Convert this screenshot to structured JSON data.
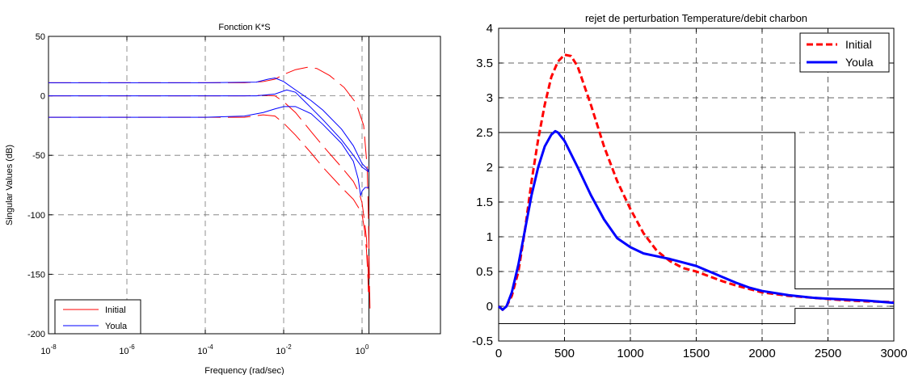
{
  "chart_data": [
    {
      "type": "line",
      "title": "Fonction K*S",
      "xlabel": "Frequency (rad/sec)",
      "ylabel": "Singular Values (dB)",
      "xscale": "log",
      "xlim": [
        1e-08,
        100
      ],
      "ylim": [
        -200,
        50
      ],
      "grid": true,
      "legend_position": "bottom-left",
      "xticks": [
        1e-08,
        1e-06,
        0.0001,
        0.01,
        1
      ],
      "xtick_labels": [
        {
          "base": "10",
          "exp": "-8"
        },
        {
          "base": "10",
          "exp": "-6"
        },
        {
          "base": "10",
          "exp": "-4"
        },
        {
          "base": "10",
          "exp": "-2"
        },
        {
          "base": "10",
          "exp": "0"
        }
      ],
      "yticks": [
        -200,
        -150,
        -100,
        -50,
        0,
        50
      ],
      "ytick_labels": [
        "-200",
        "-150",
        "-100",
        "-50",
        "0",
        "50"
      ],
      "series": [
        {
          "name": "Initial",
          "color": "#ff0000",
          "dash": "long",
          "values": [
            [
              [
                1e-08,
                11
              ],
              [
                0.0001,
                11
              ],
              [
                0.001,
                11
              ],
              [
                0.003,
                12
              ],
              [
                0.006,
                14
              ],
              [
                0.01,
                18
              ],
              [
                0.02,
                22
              ],
              [
                0.04,
                24
              ],
              [
                0.07,
                23
              ],
              [
                0.15,
                17
              ],
              [
                0.35,
                7
              ],
              [
                0.7,
                -6
              ],
              [
                1.1,
                -25
              ],
              [
                1.35,
                -60
              ],
              [
                1.45,
                -100
              ],
              [
                1.5,
                -130
              ],
              [
                1.55,
                -160
              ],
              [
                1.6,
                -180
              ]
            ],
            [
              [
                1e-08,
                0
              ],
              [
                0.0001,
                0
              ],
              [
                0.001,
                0
              ],
              [
                0.003,
                0.5
              ],
              [
                0.006,
                0
              ],
              [
                0.01,
                -5
              ],
              [
                0.02,
                -14
              ],
              [
                0.05,
                -30
              ],
              [
                0.1,
                -42
              ],
              [
                0.3,
                -60
              ],
              [
                0.6,
                -72
              ],
              [
                0.85,
                -82
              ],
              [
                1.0,
                -90
              ],
              [
                1.15,
                -105
              ],
              [
                1.3,
                -120
              ],
              [
                1.42,
                -145
              ],
              [
                1.5,
                -165
              ]
            ],
            [
              [
                1e-08,
                -18
              ],
              [
                0.0001,
                -18
              ],
              [
                0.001,
                -18
              ],
              [
                0.003,
                -16
              ],
              [
                0.006,
                -17
              ],
              [
                0.01,
                -23
              ],
              [
                0.02,
                -33
              ],
              [
                0.05,
                -48
              ],
              [
                0.1,
                -60
              ],
              [
                0.3,
                -77
              ],
              [
                0.6,
                -87
              ],
              [
                0.85,
                -95
              ],
              [
                1.0,
                -100
              ],
              [
                1.15,
                -112
              ],
              [
                1.3,
                -130
              ],
              [
                1.4,
                -150
              ],
              [
                1.45,
                -165
              ]
            ]
          ]
        },
        {
          "name": "Youla",
          "color": "#0000ff",
          "dash": "solid",
          "values": [
            [
              [
                1e-08,
                11
              ],
              [
                0.0001,
                11
              ],
              [
                0.002,
                11.5
              ],
              [
                0.004,
                14
              ],
              [
                0.006,
                15
              ],
              [
                0.01,
                12
              ],
              [
                0.02,
                5
              ],
              [
                0.05,
                -4
              ],
              [
                0.1,
                -12
              ],
              [
                0.3,
                -28
              ],
              [
                0.6,
                -42
              ],
              [
                1.0,
                -57
              ],
              [
                1.5,
                -63
              ]
            ],
            [
              [
                1e-08,
                0
              ],
              [
                0.0001,
                0
              ],
              [
                0.002,
                0
              ],
              [
                0.006,
                1.5
              ],
              [
                0.012,
                5
              ],
              [
                0.02,
                3
              ],
              [
                0.05,
                -10
              ],
              [
                0.1,
                -20
              ],
              [
                0.3,
                -37
              ],
              [
                0.6,
                -50
              ],
              [
                1.0,
                -60
              ],
              [
                1.5,
                -64
              ]
            ],
            [
              [
                1e-08,
                -18
              ],
              [
                0.0001,
                -18
              ],
              [
                0.001,
                -17
              ],
              [
                0.003,
                -14
              ],
              [
                0.006,
                -11
              ],
              [
                0.01,
                -9
              ],
              [
                0.02,
                -9
              ],
              [
                0.05,
                -15
              ],
              [
                0.1,
                -24
              ],
              [
                0.3,
                -40
              ],
              [
                0.6,
                -55
              ],
              [
                0.8,
                -70
              ],
              [
                0.92,
                -84
              ],
              [
                1.0,
                -80
              ],
              [
                1.2,
                -77
              ],
              [
                1.5,
                -77
              ]
            ]
          ]
        }
      ]
    },
    {
      "type": "line",
      "title": "rejet de perturbation Temperature/debit charbon",
      "xlim": [
        0,
        3000
      ],
      "ylim": [
        -0.5,
        4
      ],
      "grid": true,
      "legend_position": "top-right",
      "xticks": [
        0,
        500,
        1000,
        1500,
        2000,
        2500,
        3000
      ],
      "xtick_labels": [
        "0",
        "500",
        "1000",
        "1500",
        "2000",
        "2500",
        "3000"
      ],
      "yticks": [
        -0.5,
        0,
        0.5,
        1,
        1.5,
        2,
        2.5,
        3,
        3.5,
        4
      ],
      "ytick_labels": [
        "-0.5",
        "0",
        "0.5",
        "1",
        "1.5",
        "2",
        "2.5",
        "3",
        "3.5",
        "4"
      ],
      "series": [
        {
          "name": "Initial",
          "color": "#ff0000",
          "dash": "dashed",
          "values": [
            [
              0,
              0
            ],
            [
              30,
              -0.05
            ],
            [
              60,
              0
            ],
            [
              100,
              0.15
            ],
            [
              150,
              0.5
            ],
            [
              200,
              1.1
            ],
            [
              250,
              1.8
            ],
            [
              300,
              2.4
            ],
            [
              350,
              2.9
            ],
            [
              400,
              3.3
            ],
            [
              450,
              3.52
            ],
            [
              500,
              3.62
            ],
            [
              550,
              3.6
            ],
            [
              600,
              3.45
            ],
            [
              700,
              2.9
            ],
            [
              800,
              2.3
            ],
            [
              900,
              1.8
            ],
            [
              1000,
              1.4
            ],
            [
              1100,
              1.05
            ],
            [
              1200,
              0.8
            ],
            [
              1300,
              0.65
            ],
            [
              1400,
              0.55
            ],
            [
              1500,
              0.5
            ],
            [
              1600,
              0.43
            ],
            [
              1700,
              0.36
            ],
            [
              1800,
              0.3
            ],
            [
              1900,
              0.25
            ],
            [
              2000,
              0.2
            ],
            [
              2200,
              0.15
            ],
            [
              2400,
              0.12
            ],
            [
              2600,
              0.09
            ],
            [
              2800,
              0.07
            ],
            [
              3000,
              0.06
            ]
          ]
        },
        {
          "name": "Youla",
          "color": "#0000ff",
          "dash": "solid",
          "values": [
            [
              0,
              0
            ],
            [
              30,
              -0.05
            ],
            [
              60,
              0
            ],
            [
              100,
              0.2
            ],
            [
              150,
              0.6
            ],
            [
              200,
              1.1
            ],
            [
              250,
              1.6
            ],
            [
              300,
              2.0
            ],
            [
              350,
              2.3
            ],
            [
              400,
              2.47
            ],
            [
              430,
              2.52
            ],
            [
              450,
              2.5
            ],
            [
              500,
              2.38
            ],
            [
              600,
              2.0
            ],
            [
              700,
              1.6
            ],
            [
              800,
              1.25
            ],
            [
              900,
              0.98
            ],
            [
              1000,
              0.85
            ],
            [
              1100,
              0.76
            ],
            [
              1200,
              0.72
            ],
            [
              1300,
              0.68
            ],
            [
              1400,
              0.63
            ],
            [
              1500,
              0.58
            ],
            [
              1600,
              0.5
            ],
            [
              1700,
              0.42
            ],
            [
              1800,
              0.34
            ],
            [
              1900,
              0.27
            ],
            [
              2000,
              0.22
            ],
            [
              2200,
              0.16
            ],
            [
              2400,
              0.12
            ],
            [
              2600,
              0.1
            ],
            [
              2800,
              0.08
            ],
            [
              3000,
              0.05
            ]
          ]
        }
      ],
      "template": {
        "color": "#000000",
        "upper": [
          [
            0,
            2.5
          ],
          [
            2250,
            2.5
          ],
          [
            2250,
            0.25
          ],
          [
            3000,
            0.25
          ]
        ],
        "lower": [
          [
            0,
            -0.25
          ],
          [
            2250,
            -0.25
          ],
          [
            2250,
            -0.03
          ],
          [
            3000,
            -0.03
          ]
        ]
      }
    }
  ]
}
